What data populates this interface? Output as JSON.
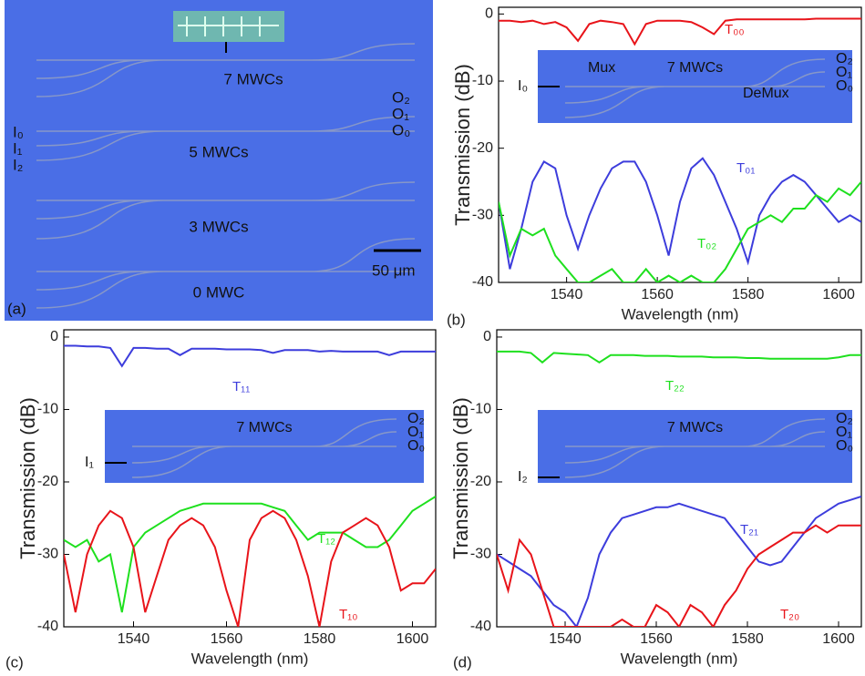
{
  "panel_a": {
    "label": "(a)",
    "devices": [
      "7 MWCs",
      "5 MWCs",
      "3 MWCs",
      "0 MWC"
    ],
    "inputs": [
      "I₀",
      "I₁",
      "I₂"
    ],
    "outputs": [
      "O₂",
      "O₁",
      "O₀"
    ],
    "scale_bar": "50 μm"
  },
  "chart_data": [
    {
      "type": "line",
      "panel_label": "(b)",
      "y_label": "Transmission (dB)",
      "x_label": "Wavelength (nm)",
      "xlim": [
        1525,
        1605
      ],
      "xticks": [
        1540,
        1560,
        1580,
        1600
      ],
      "ylim": [
        -40,
        1
      ],
      "yticks": [
        -40,
        -30,
        -20,
        -10,
        0
      ],
      "x": [
        1525,
        1527.5,
        1530,
        1532.5,
        1535,
        1537.5,
        1540,
        1542.5,
        1545,
        1547.5,
        1550,
        1552.5,
        1555,
        1557.5,
        1560,
        1562.5,
        1565,
        1567.5,
        1570,
        1572.5,
        1575,
        1577.5,
        1580,
        1582.5,
        1585,
        1587.5,
        1590,
        1592.5,
        1595,
        1597.5,
        1600,
        1602.5,
        1605
      ],
      "series": [
        {
          "name": "T₀₀",
          "color": "#e8141a",
          "values": [
            -1,
            -1,
            -1.2,
            -1,
            -1.5,
            -1.2,
            -2,
            -4,
            -1.5,
            -1,
            -1.2,
            -1.5,
            -4.5,
            -1.5,
            -1,
            -1,
            -1,
            -1.2,
            -2,
            -3,
            -1,
            -0.8,
            -0.8,
            -0.8,
            -0.8,
            -0.8,
            -0.8,
            -0.8,
            -0.7,
            -0.7,
            -0.7,
            -0.7,
            -0.7
          ]
        },
        {
          "name": "T₀₁",
          "color": "#3d3ddc",
          "values": [
            -28,
            -38,
            -32,
            -25,
            -22,
            -23,
            -30,
            -35,
            -30,
            -26,
            -23,
            -22,
            -22,
            -25,
            -30,
            -36,
            -28,
            -23,
            -21.5,
            -24,
            -28,
            -32,
            -37,
            -30,
            -27,
            -25,
            -24,
            -25,
            -27,
            -29,
            -31,
            -30,
            -31
          ]
        },
        {
          "name": "T₀₂",
          "color": "#1ee01e",
          "values": [
            -28,
            -36,
            -32,
            -33,
            -32,
            -36,
            -38,
            -40,
            -40,
            -39,
            -38,
            -40,
            -40,
            -38,
            -40,
            -39,
            -40,
            -39,
            -40,
            -40,
            -38,
            -35,
            -32,
            -31,
            -30,
            -31,
            -29,
            -29,
            -27,
            -28,
            -26,
            -27,
            -25
          ]
        }
      ],
      "inset": {
        "title": "7 MWCs",
        "input": "I₀",
        "outputs": [
          "O₂",
          "O₁",
          "O₀"
        ],
        "labels": [
          "Mux",
          "DeMux"
        ]
      }
    },
    {
      "type": "line",
      "panel_label": "(c)",
      "y_label": "Transmission (dB)",
      "x_label": "Wavelength (nm)",
      "xlim": [
        1525,
        1605
      ],
      "xticks": [
        1540,
        1560,
        1580,
        1600
      ],
      "ylim": [
        -40,
        1
      ],
      "yticks": [
        -40,
        -30,
        -20,
        -10,
        0
      ],
      "x": [
        1525,
        1527.5,
        1530,
        1532.5,
        1535,
        1537.5,
        1540,
        1542.5,
        1545,
        1547.5,
        1550,
        1552.5,
        1555,
        1557.5,
        1560,
        1562.5,
        1565,
        1567.5,
        1570,
        1572.5,
        1575,
        1577.5,
        1580,
        1582.5,
        1585,
        1587.5,
        1590,
        1592.5,
        1595,
        1597.5,
        1600,
        1602.5,
        1605
      ],
      "series": [
        {
          "name": "T₁₁",
          "color": "#3d3ddc",
          "values": [
            -1.2,
            -1.2,
            -1.3,
            -1.3,
            -1.5,
            -4,
            -1.5,
            -1.5,
            -1.6,
            -1.6,
            -2.5,
            -1.6,
            -1.6,
            -1.6,
            -1.7,
            -1.7,
            -1.7,
            -1.8,
            -2.2,
            -1.8,
            -1.8,
            -1.8,
            -2,
            -1.9,
            -2,
            -2,
            -2,
            -2,
            -2.5,
            -2,
            -2,
            -2,
            -2
          ]
        },
        {
          "name": "T₁₂",
          "color": "#1ee01e",
          "values": [
            -28,
            -29,
            -28,
            -31,
            -30,
            -38,
            -29,
            -27,
            -26,
            -25,
            -24,
            -23.5,
            -23,
            -23,
            -23,
            -23,
            -23,
            -23,
            -23.5,
            -24,
            -26,
            -28,
            -27,
            -27,
            -27,
            -28,
            -29,
            -29,
            -28,
            -26,
            -24,
            -23,
            -22
          ]
        },
        {
          "name": "T₁₀",
          "color": "#e8141a",
          "values": [
            -30,
            -38,
            -30,
            -26,
            -24,
            -25,
            -29,
            -38,
            -33,
            -28,
            -26,
            -25,
            -26,
            -29,
            -35,
            -40,
            -28,
            -25,
            -24,
            -25,
            -28,
            -33,
            -40,
            -31,
            -27,
            -26,
            -25,
            -26,
            -29,
            -35,
            -34,
            -34,
            -32
          ]
        }
      ],
      "inset": {
        "title": "7 MWCs",
        "input": "I₁",
        "outputs": [
          "O₂",
          "O₁",
          "O₀"
        ]
      }
    },
    {
      "type": "line",
      "panel_label": "(d)",
      "y_label": "Transmission (dB)",
      "x_label": "Wavelength (nm)",
      "xlim": [
        1525,
        1605
      ],
      "xticks": [
        1540,
        1560,
        1580,
        1600
      ],
      "ylim": [
        -40,
        1
      ],
      "yticks": [
        -40,
        -30,
        -20,
        -10,
        0
      ],
      "x": [
        1525,
        1527.5,
        1530,
        1532.5,
        1535,
        1537.5,
        1540,
        1542.5,
        1545,
        1547.5,
        1550,
        1552.5,
        1555,
        1557.5,
        1560,
        1562.5,
        1565,
        1567.5,
        1570,
        1572.5,
        1575,
        1577.5,
        1580,
        1582.5,
        1585,
        1587.5,
        1590,
        1592.5,
        1595,
        1597.5,
        1600,
        1602.5,
        1605
      ],
      "series": [
        {
          "name": "T₂₂",
          "color": "#1ee01e",
          "values": [
            -2,
            -2,
            -2,
            -2.2,
            -3.5,
            -2.2,
            -2.3,
            -2.4,
            -2.5,
            -3.5,
            -2.5,
            -2.5,
            -2.5,
            -2.6,
            -2.6,
            -2.6,
            -2.7,
            -2.7,
            -2.7,
            -2.8,
            -2.8,
            -2.8,
            -2.9,
            -2.9,
            -3,
            -3,
            -3,
            -3,
            -3,
            -3,
            -2.8,
            -2.5,
            -2.5
          ]
        },
        {
          "name": "T₂₁",
          "color": "#3d3ddc",
          "values": [
            -30,
            -31,
            -32,
            -33,
            -35,
            -37,
            -38,
            -40,
            -36,
            -30,
            -27,
            -25,
            -24.5,
            -24,
            -23.5,
            -23.5,
            -23,
            -23.5,
            -24,
            -24.5,
            -25,
            -27,
            -29,
            -31,
            -31.5,
            -31,
            -29,
            -27,
            -25,
            -24,
            -23,
            -22.5,
            -22
          ]
        },
        {
          "name": "T₂₀",
          "color": "#e8141a",
          "values": [
            -30,
            -35,
            -28,
            -30,
            -35,
            -40,
            -40,
            -40,
            -40,
            -40,
            -40,
            -39,
            -40,
            -40,
            -37,
            -38,
            -40,
            -37,
            -38,
            -40,
            -37,
            -35,
            -32,
            -30,
            -29,
            -28,
            -27,
            -27,
            -26,
            -27,
            -26,
            -26,
            -26
          ]
        }
      ],
      "inset": {
        "title": "7 MWCs",
        "input": "I₂",
        "outputs": [
          "O₂",
          "O₁",
          "O₀"
        ]
      }
    }
  ]
}
